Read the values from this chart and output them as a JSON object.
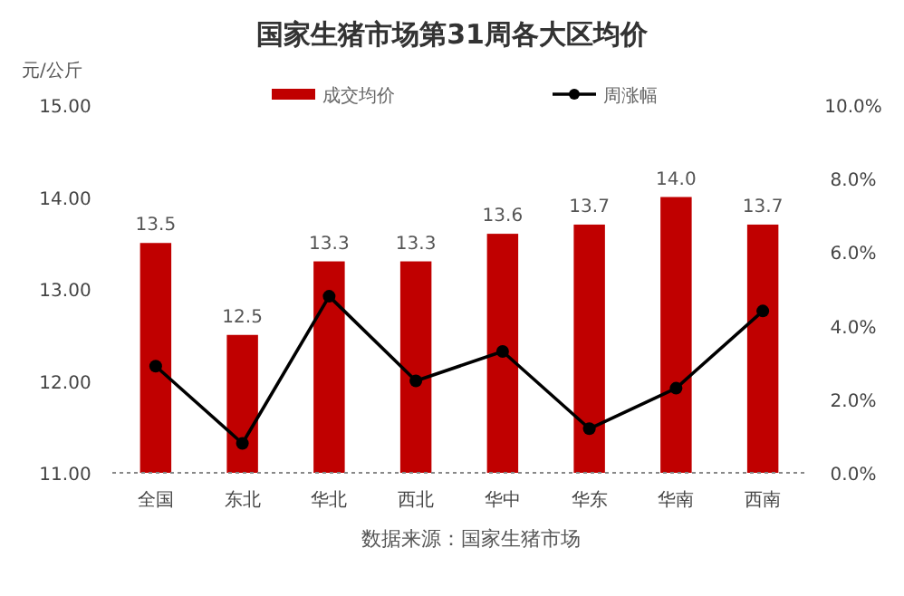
{
  "chart_data": {
    "type": "bar",
    "title": "国家生猪市场第31周各大区均价",
    "ylabel": "元/公斤",
    "categories": [
      "全国",
      "东北",
      "华北",
      "西北",
      "华中",
      "华东",
      "华南",
      "西南"
    ],
    "series": [
      {
        "name": "成交均价",
        "color": "#c00000",
        "values": [
          13.5,
          12.5,
          13.3,
          13.3,
          13.6,
          13.7,
          14.0,
          13.7
        ],
        "value_labels": [
          "13.5",
          "12.5",
          "13.3",
          "13.3",
          "13.6",
          "13.7",
          "14.0",
          "13.7"
        ]
      },
      {
        "name": "周涨幅",
        "type": "line",
        "axis": "y2",
        "color": "#000000",
        "marker": "circle",
        "values": [
          2.9,
          0.8,
          4.8,
          2.5,
          3.3,
          1.2,
          2.3,
          4.4
        ]
      }
    ],
    "ylim": [
      11,
      15
    ],
    "yticks": [
      {
        "value": 11,
        "label": "11.00"
      },
      {
        "value": 12,
        "label": "12.00"
      },
      {
        "value": 13,
        "label": "13.00"
      },
      {
        "value": 14,
        "label": "14.00"
      },
      {
        "value": 15,
        "label": "15.00"
      }
    ],
    "y2lim": [
      0,
      10
    ],
    "y2ticks": [
      {
        "value": 0,
        "label": "0.0%"
      },
      {
        "value": 2,
        "label": "2.0%"
      },
      {
        "value": 4,
        "label": "4.0%"
      },
      {
        "value": 6,
        "label": "6.0%"
      },
      {
        "value": 8,
        "label": "8.0%"
      },
      {
        "value": 10,
        "label": "10.0%"
      }
    ],
    "legend": "top",
    "grid": false,
    "annotations": [
      "数据来源：国家生猪市场"
    ]
  }
}
